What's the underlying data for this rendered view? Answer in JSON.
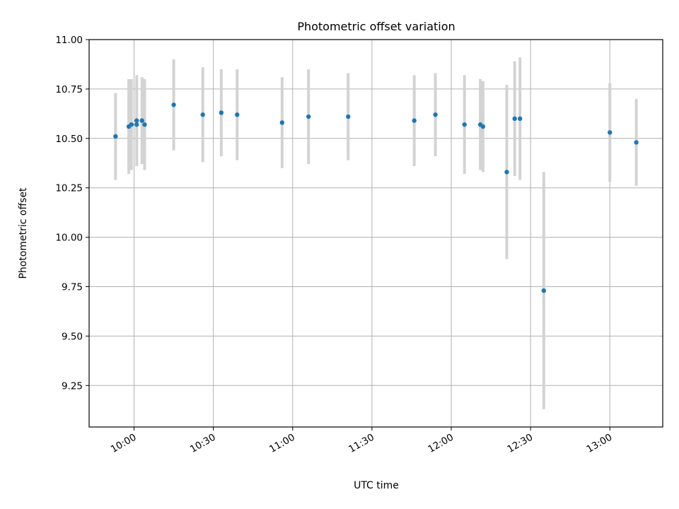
{
  "chart_data": {
    "type": "scatter",
    "title": "Photometric offset variation",
    "xlabel": "UTC time",
    "ylabel": "Photometric offset",
    "x_ticks": [
      "10:00",
      "10:30",
      "11:00",
      "11:30",
      "12:00",
      "12:30",
      "13:00"
    ],
    "y_ticks": [
      "9.25",
      "9.50",
      "9.75",
      "10.00",
      "10.25",
      "10.50",
      "10.75",
      "11.00"
    ],
    "xlim": [
      "09:43",
      "13:20"
    ],
    "ylim": [
      9.04,
      11.0
    ],
    "grid": true,
    "point_color": "#1f77b4",
    "errorbar_color": "#d3d3d3",
    "points": [
      {
        "x": "09:53",
        "y": 10.51,
        "err": 0.22
      },
      {
        "x": "09:58",
        "y": 10.56,
        "err": 0.24
      },
      {
        "x": "09:59",
        "y": 10.57,
        "err": 0.23
      },
      {
        "x": "10:01",
        "y": 10.59,
        "err": 0.23
      },
      {
        "x": "10:01",
        "y": 10.57,
        "err": 0.21
      },
      {
        "x": "10:03",
        "y": 10.59,
        "err": 0.22
      },
      {
        "x": "10:04",
        "y": 10.57,
        "err": 0.23
      },
      {
        "x": "10:15",
        "y": 10.67,
        "err": 0.23
      },
      {
        "x": "10:26",
        "y": 10.62,
        "err": 0.24
      },
      {
        "x": "10:33",
        "y": 10.63,
        "err": 0.22
      },
      {
        "x": "10:39",
        "y": 10.62,
        "err": 0.23
      },
      {
        "x": "10:56",
        "y": 10.58,
        "err": 0.23
      },
      {
        "x": "11:06",
        "y": 10.61,
        "err": 0.24
      },
      {
        "x": "11:21",
        "y": 10.61,
        "err": 0.22
      },
      {
        "x": "11:46",
        "y": 10.59,
        "err": 0.23
      },
      {
        "x": "11:54",
        "y": 10.62,
        "err": 0.21
      },
      {
        "x": "12:05",
        "y": 10.57,
        "err": 0.25
      },
      {
        "x": "12:11",
        "y": 10.57,
        "err": 0.23
      },
      {
        "x": "12:12",
        "y": 10.56,
        "err": 0.23
      },
      {
        "x": "12:21",
        "y": 10.33,
        "err": 0.44
      },
      {
        "x": "12:24",
        "y": 10.6,
        "err": 0.29
      },
      {
        "x": "12:26",
        "y": 10.6,
        "err": 0.31
      },
      {
        "x": "12:35",
        "y": 9.73,
        "err": 0.6
      },
      {
        "x": "13:00",
        "y": 10.53,
        "err": 0.25
      },
      {
        "x": "13:10",
        "y": 10.48,
        "err": 0.22
      }
    ]
  }
}
